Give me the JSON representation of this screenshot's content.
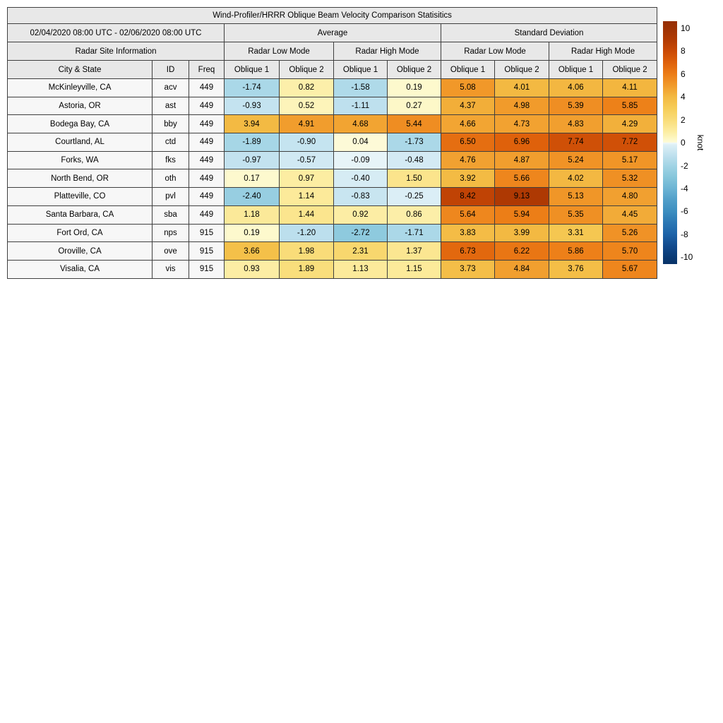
{
  "title": "Wind-Profiler/HRRR Oblique Beam Velocity Comparison Statisitics",
  "header": {
    "date_range": "02/04/2020 08:00 UTC - 02/06/2020 08:00 UTC",
    "group_average": "Average",
    "group_stddev": "Standard Deviation",
    "site_info": "Radar Site Information",
    "modes": [
      "Radar Low Mode",
      "Radar High Mode",
      "Radar Low Mode",
      "Radar High Mode"
    ],
    "columns": [
      "City & State",
      "ID",
      "Freq",
      "Oblique 1",
      "Oblique 2",
      "Oblique 1",
      "Oblique 2",
      "Oblique 1",
      "Oblique 2",
      "Oblique 1",
      "Oblique 2"
    ]
  },
  "rows": [
    {
      "city": "McKinleyville, CA",
      "id": "acv",
      "freq": "449",
      "values": [
        -1.74,
        0.82,
        -1.58,
        0.19,
        5.08,
        4.01,
        4.06,
        4.11
      ]
    },
    {
      "city": "Astoria, OR",
      "id": "ast",
      "freq": "449",
      "values": [
        -0.93,
        0.52,
        -1.11,
        0.27,
        4.37,
        4.98,
        5.39,
        5.85
      ]
    },
    {
      "city": "Bodega Bay, CA",
      "id": "bby",
      "freq": "449",
      "values": [
        3.94,
        4.91,
        4.68,
        5.44,
        4.66,
        4.73,
        4.83,
        4.29
      ]
    },
    {
      "city": "Courtland, AL",
      "id": "ctd",
      "freq": "449",
      "values": [
        -1.89,
        -0.9,
        0.04,
        -1.73,
        6.5,
        6.96,
        7.74,
        7.72
      ]
    },
    {
      "city": "Forks, WA",
      "id": "fks",
      "freq": "449",
      "values": [
        -0.97,
        -0.57,
        -0.09,
        -0.48,
        4.76,
        4.87,
        5.24,
        5.17
      ]
    },
    {
      "city": "North Bend, OR",
      "id": "oth",
      "freq": "449",
      "values": [
        0.17,
        0.97,
        -0.4,
        1.5,
        3.92,
        5.66,
        4.02,
        5.32
      ]
    },
    {
      "city": "Platteville, CO",
      "id": "pvl",
      "freq": "449",
      "values": [
        -2.4,
        1.14,
        -0.83,
        -0.25,
        8.42,
        9.13,
        5.13,
        4.8
      ]
    },
    {
      "city": "Santa Barbara, CA",
      "id": "sba",
      "freq": "449",
      "values": [
        1.18,
        1.44,
        0.92,
        0.86,
        5.64,
        5.94,
        5.35,
        4.45
      ]
    },
    {
      "city": "Fort Ord, CA",
      "id": "nps",
      "freq": "915",
      "values": [
        0.19,
        -1.2,
        -2.72,
        -1.71,
        3.83,
        3.99,
        3.31,
        5.26
      ]
    },
    {
      "city": "Oroville, CA",
      "id": "ove",
      "freq": "915",
      "values": [
        3.66,
        1.98,
        2.31,
        1.37,
        6.73,
        6.22,
        5.86,
        5.7
      ]
    },
    {
      "city": "Visalia, CA",
      "id": "vis",
      "freq": "915",
      "values": [
        0.93,
        1.89,
        1.13,
        1.15,
        3.73,
        4.84,
        3.76,
        5.67
      ]
    }
  ],
  "colorbar": {
    "label": "knot",
    "ticks": [
      10,
      8,
      6,
      4,
      2,
      0,
      -2,
      -4,
      -6,
      -8,
      -10
    ],
    "vmin": -10.6,
    "vmax": 10.6,
    "colormap": [
      [
        -10.6,
        "#093368"
      ],
      [
        -10,
        "#0a3a74"
      ],
      [
        -9,
        "#124b8e"
      ],
      [
        -8,
        "#1d63a8"
      ],
      [
        -7,
        "#2b77b4"
      ],
      [
        -6,
        "#3c8ec0"
      ],
      [
        -5,
        "#519fc9"
      ],
      [
        -4,
        "#6cb4d4"
      ],
      [
        -3,
        "#86c6db"
      ],
      [
        -2,
        "#a2d4e5"
      ],
      [
        -1,
        "#c2e2ef"
      ],
      [
        -0.2,
        "#ddeff6"
      ],
      [
        -0.02,
        "#eef7fa"
      ],
      [
        0.02,
        "#fdfad8"
      ],
      [
        0.3,
        "#fdf8c6"
      ],
      [
        1,
        "#fceca0"
      ],
      [
        2,
        "#f9dc78"
      ],
      [
        3,
        "#f6cd58"
      ],
      [
        4,
        "#f3b942"
      ],
      [
        5,
        "#f19a2b"
      ],
      [
        6,
        "#ec7c16"
      ],
      [
        7,
        "#de600b"
      ],
      [
        8,
        "#ca4a06"
      ],
      [
        9,
        "#b13a03"
      ],
      [
        10,
        "#9d3204"
      ],
      [
        10.6,
        "#952e04"
      ]
    ]
  },
  "chart_data": {
    "type": "heatmap",
    "title": "Wind-Profiler/HRRR Oblique Beam Velocity Comparison Statisitics",
    "period": "02/04/2020 08:00 UTC - 02/06/2020 08:00 UTC",
    "column_groups": [
      "Average Radar Low Mode Oblique 1",
      "Average Radar Low Mode Oblique 2",
      "Average Radar High Mode Oblique 1",
      "Average Radar High Mode Oblique 2",
      "Std Dev Radar Low Mode Oblique 1",
      "Std Dev Radar Low Mode Oblique 2",
      "Std Dev Radar High Mode Oblique 1",
      "Std Dev Radar High Mode Oblique 2"
    ],
    "row_labels": [
      "McKinleyville, CA",
      "Astoria, OR",
      "Bodega Bay, CA",
      "Courtland, AL",
      "Forks, WA",
      "North Bend, OR",
      "Platteville, CO",
      "Santa Barbara, CA",
      "Fort Ord, CA",
      "Oroville, CA",
      "Visalia, CA"
    ],
    "site_ids": [
      "acv",
      "ast",
      "bby",
      "ctd",
      "fks",
      "oth",
      "pvl",
      "sba",
      "nps",
      "ove",
      "vis"
    ],
    "frequencies": [
      449,
      449,
      449,
      449,
      449,
      449,
      449,
      449,
      915,
      915,
      915
    ],
    "matrix": [
      [
        -1.74,
        0.82,
        -1.58,
        0.19,
        5.08,
        4.01,
        4.06,
        4.11
      ],
      [
        -0.93,
        0.52,
        -1.11,
        0.27,
        4.37,
        4.98,
        5.39,
        5.85
      ],
      [
        3.94,
        4.91,
        4.68,
        5.44,
        4.66,
        4.73,
        4.83,
        4.29
      ],
      [
        -1.89,
        -0.9,
        0.04,
        -1.73,
        6.5,
        6.96,
        7.74,
        7.72
      ],
      [
        -0.97,
        -0.57,
        -0.09,
        -0.48,
        4.76,
        4.87,
        5.24,
        5.17
      ],
      [
        0.17,
        0.97,
        -0.4,
        1.5,
        3.92,
        5.66,
        4.02,
        5.32
      ],
      [
        -2.4,
        1.14,
        -0.83,
        -0.25,
        8.42,
        9.13,
        5.13,
        4.8
      ],
      [
        1.18,
        1.44,
        0.92,
        0.86,
        5.64,
        5.94,
        5.35,
        4.45
      ],
      [
        0.19,
        -1.2,
        -2.72,
        -1.71,
        3.83,
        3.99,
        3.31,
        5.26
      ],
      [
        3.66,
        1.98,
        2.31,
        1.37,
        6.73,
        6.22,
        5.86,
        5.7
      ],
      [
        0.93,
        1.89,
        1.13,
        1.15,
        3.73,
        4.84,
        3.76,
        5.67
      ]
    ],
    "colorbar_label": "knot",
    "color_range": [
      -10,
      10
    ],
    "legend_position": "right"
  }
}
